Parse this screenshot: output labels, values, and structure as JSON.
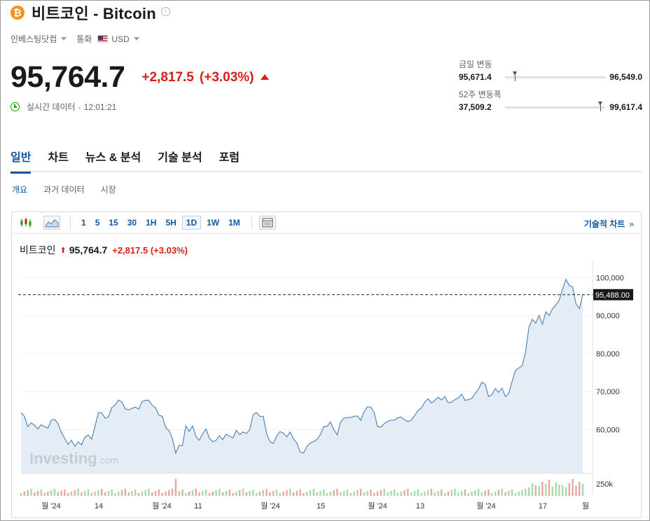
{
  "header": {
    "coin_symbol": "₿",
    "title": "비트코인 - Bitcoin",
    "info_glyph": "i",
    "source": "인베스팅닷컴",
    "currency_label": "통화",
    "currency": "USD"
  },
  "quote": {
    "price": "95,764.7",
    "change": "+2,817.5",
    "change_pct": "(+3.03%)",
    "realtime_label": "실시간 데이터",
    "time": "12:01:21"
  },
  "ranges": {
    "day": {
      "label": "금일 변동",
      "low": "95,671.4",
      "high": "96,549.0",
      "position": 0.08
    },
    "week52": {
      "label": "52주 변동폭",
      "low": "37,509.2",
      "high": "99,617.4",
      "position": 0.93
    }
  },
  "tabs": [
    "일반",
    "차트",
    "뉴스 & 분석",
    "기술 분석",
    "포럼"
  ],
  "active_tab": "일반",
  "sub_tabs": [
    "개요",
    "과거 데이터",
    "시장"
  ],
  "active_sub_tab": "개요",
  "chart_toolbar": {
    "timeframes": [
      "1",
      "5",
      "15",
      "30",
      "1H",
      "5H",
      "1D",
      "1W",
      "1M"
    ],
    "active_timeframe": "1D",
    "tech_chart_label": "기술적 차트",
    "tech_chart_chevron": "»"
  },
  "chart_header": {
    "name": "비트코인",
    "price": "95,764.7",
    "change": "+2,817.5",
    "change_pct": "(+3.03%)"
  },
  "watermark": {
    "main": "Investing",
    "suffix": ".com"
  },
  "colors": {
    "accent": "#1256a0",
    "down_red": "#d91e18",
    "up_green": "#0ea600",
    "area_fill": "#e4edf6",
    "line": "#4a7fb5"
  },
  "chart_data": {
    "type": "area",
    "title": "",
    "ylabel": "",
    "xlabel": "",
    "yticks": [
      60000,
      70000,
      80000,
      90000,
      100000
    ],
    "ytick_labels": [
      "60,000",
      "70,000",
      "80,000",
      "90,000",
      "100,000"
    ],
    "ylim": [
      48500,
      103000
    ],
    "current_value": 95488,
    "current_value_label": "95,488.00",
    "volume_label": "250k",
    "x_tick_labels": [
      "월 '24",
      "14",
      "월 '24",
      "11",
      "월 '24",
      "15",
      "월 '24",
      "13",
      "월 '24",
      "17",
      "월"
    ],
    "values": [
      64500,
      63500,
      60800,
      61800,
      61200,
      60200,
      61300,
      60800,
      60400,
      62500,
      62700,
      61600,
      59300,
      57700,
      56100,
      57200,
      55600,
      56800,
      56000,
      58000,
      58600,
      57500,
      60900,
      64500,
      64400,
      63000,
      63400,
      65800,
      66500,
      67800,
      67200,
      65500,
      65200,
      65600,
      65900,
      65400,
      67400,
      67700,
      67700,
      66400,
      65700,
      63800,
      63500,
      60600,
      59700,
      57700,
      53800,
      55900,
      55800,
      61000,
      59500,
      61000,
      58200,
      57200,
      58900,
      60200,
      57800,
      56800,
      57200,
      58400,
      57400,
      58800,
      58300,
      57800,
      59800,
      58700,
      59400,
      59000,
      60000,
      64000,
      64500,
      63500,
      63500,
      59000,
      56800,
      56400,
      58300,
      59500,
      59100,
      58100,
      59400,
      57600,
      56500,
      54100,
      53900,
      55600,
      56500,
      56900,
      57400,
      58700,
      60800,
      60900,
      62000,
      60000,
      58600,
      62000,
      63000,
      63200,
      63200,
      63500,
      63600,
      62500,
      64700,
      66000,
      65900,
      64400,
      60800,
      60700,
      61600,
      62200,
      62500,
      62500,
      63100,
      63300,
      62600,
      62100,
      62500,
      63700,
      65000,
      65700,
      67200,
      68100,
      67000,
      67700,
      68500,
      67800,
      68700,
      67100,
      67200,
      67900,
      68300,
      69300,
      67700,
      67900,
      68200,
      69500,
      70600,
      72500,
      71900,
      68700,
      69200,
      70800,
      69800,
      70900,
      68700,
      69500,
      72700,
      75600,
      76200,
      76800,
      80500,
      87000,
      89000,
      88000,
      90000,
      87700,
      91000,
      90000,
      91800,
      92800,
      94000,
      97000,
      99500,
      97900,
      97500,
      93000,
      91800,
      95488
    ]
  }
}
